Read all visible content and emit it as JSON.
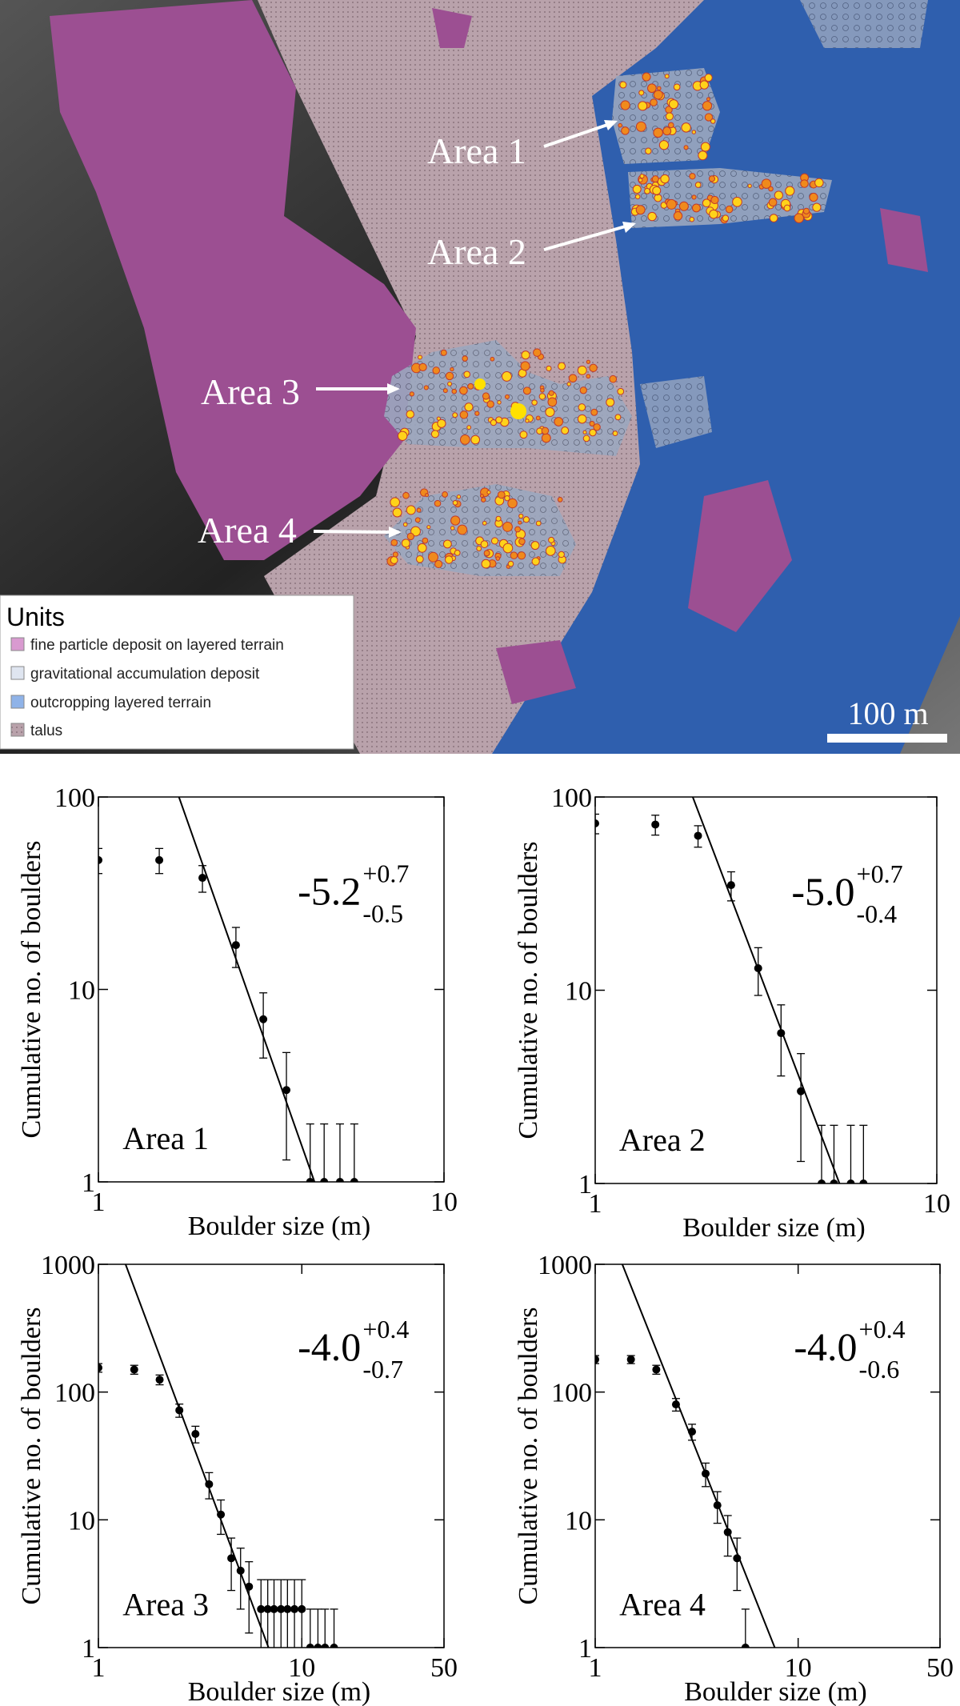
{
  "map": {
    "areas": [
      "Area 1",
      "Area 2",
      "Area 3",
      "Area 4"
    ],
    "legend": {
      "title": "Units",
      "items": [
        "fine particle deposit on layered terrain",
        "gravitational accumulation deposit",
        "outcropping layered terrain",
        "talus"
      ]
    },
    "scale_bar": "100 m"
  },
  "chart_data": [
    {
      "type": "scatter",
      "label": "Area 1",
      "x_label": "Boulder size (m)",
      "y_label": "Cumulative no. of boulders",
      "x": [
        1,
        1.5,
        2,
        2.5,
        3,
        3.5,
        4.1,
        4.5,
        5,
        5.5
      ],
      "values": [
        47,
        47,
        38,
        17,
        7,
        3,
        1,
        1,
        1,
        1
      ],
      "errors": [
        7,
        7,
        6,
        4,
        2.6,
        1.7,
        1,
        1,
        1,
        1
      ],
      "fit": {
        "x": [
          1.71,
          4.22
        ],
        "y": [
          100,
          1
        ]
      },
      "slope": {
        "value": "-5.2",
        "plus": "+0.7",
        "minus": "-0.5"
      },
      "xlim": [
        1,
        10
      ],
      "ylim": [
        1,
        100
      ],
      "xticks": [
        1,
        10
      ],
      "yticks": [
        1,
        10,
        100
      ],
      "log_x": true,
      "log_y": true,
      "color": "#000000"
    },
    {
      "type": "scatter",
      "label": "Area 2",
      "x_label": "Boulder size (m)",
      "y_label": "Cumulative no. of boulders",
      "x": [
        1,
        1.5,
        2,
        2.5,
        3,
        3.5,
        4,
        4.6,
        5,
        5.6,
        6.1
      ],
      "values": [
        73,
        72,
        63,
        35,
        13,
        6,
        3,
        1,
        1,
        1,
        1
      ],
      "errors": [
        8.5,
        8.5,
        8,
        6,
        3.6,
        2.4,
        1.7,
        1,
        1,
        1,
        1
      ],
      "fit": {
        "x": [
          1.93,
          5.19
        ],
        "y": [
          100,
          1
        ]
      },
      "slope": {
        "value": "-5.0",
        "plus": "+0.7",
        "minus": "-0.4"
      },
      "xlim": [
        1,
        10
      ],
      "ylim": [
        1,
        100
      ],
      "xticks": [
        1,
        10
      ],
      "yticks": [
        1,
        10,
        100
      ],
      "log_x": true,
      "log_y": true,
      "color": "#000000"
    },
    {
      "type": "scatter",
      "label": "Area 3",
      "x_label": "Boulder size (m)",
      "y_label": "Cumulative no. of boulders",
      "x": [
        1,
        1.5,
        2,
        2.5,
        3,
        3.5,
        4,
        4.5,
        5,
        5.5,
        6.3,
        6.8,
        7.3,
        7.9,
        8.5,
        9.2,
        10,
        11,
        12,
        13,
        14.4
      ],
      "values": [
        155,
        150,
        125,
        72,
        47,
        19,
        11,
        5,
        4,
        3,
        2,
        2,
        2,
        2,
        2,
        2,
        2,
        1,
        1,
        1,
        1
      ],
      "errors": [
        12,
        12,
        11,
        8.5,
        7,
        4.4,
        3.3,
        2.2,
        2,
        1.7,
        1.4,
        1.4,
        1.4,
        1.4,
        1.4,
        1.4,
        1.4,
        1,
        1,
        1,
        1
      ],
      "fit": {
        "x": [
          1.36,
          6.86
        ],
        "y": [
          1000,
          1
        ]
      },
      "slope": {
        "value": "-4.0",
        "plus": "+0.4",
        "minus": "-0.7"
      },
      "xlim": [
        1,
        50
      ],
      "ylim": [
        1,
        1000
      ],
      "xticks": [
        1,
        10,
        50
      ],
      "yticks": [
        1,
        10,
        100,
        1000
      ],
      "log_x": true,
      "log_y": true,
      "color": "#000000"
    },
    {
      "type": "scatter",
      "label": "Area 4",
      "x_label": "Boulder size (m)",
      "y_label": "Cumulative no. of boulders",
      "x": [
        1,
        1.5,
        2,
        2.5,
        3,
        3.5,
        4,
        4.5,
        5,
        5.5
      ],
      "values": [
        180,
        180,
        150,
        80,
        49,
        23,
        13,
        8,
        5,
        1
      ],
      "errors": [
        13,
        13,
        12,
        9,
        7,
        4.8,
        3.6,
        2.8,
        2.2,
        1
      ],
      "fit": {
        "x": [
          1.36,
          7.67
        ],
        "y": [
          1000,
          1
        ]
      },
      "slope": {
        "value": "-4.0",
        "plus": "+0.4",
        "minus": "-0.6"
      },
      "xlim": [
        1,
        50
      ],
      "ylim": [
        1,
        1000
      ],
      "xticks": [
        1,
        10,
        50
      ],
      "yticks": [
        1,
        10,
        100,
        1000
      ],
      "log_x": true,
      "log_y": true,
      "color": "#000000"
    }
  ]
}
